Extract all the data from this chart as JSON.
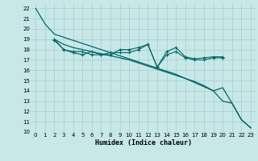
{
  "xlabel": "Humidex (Indice chaleur)",
  "background_color": "#c8e8e8",
  "grid_color": "#a8cccc",
  "line_color": "#006666",
  "xlim": [
    -0.5,
    23.5
  ],
  "ylim": [
    10,
    22.5
  ],
  "xticks": [
    0,
    1,
    2,
    3,
    4,
    5,
    6,
    7,
    8,
    9,
    10,
    11,
    12,
    13,
    14,
    15,
    16,
    17,
    18,
    19,
    20,
    21,
    22,
    23
  ],
  "yticks": [
    10,
    11,
    12,
    13,
    14,
    15,
    16,
    17,
    18,
    19,
    20,
    21,
    22
  ],
  "line1_x": [
    0,
    1,
    2,
    3,
    4,
    5,
    6,
    7,
    8,
    9,
    10,
    11,
    12,
    13,
    14,
    15,
    16,
    17,
    18,
    19,
    20,
    21,
    22,
    23
  ],
  "line1_y": [
    22.0,
    20.5,
    19.5,
    19.2,
    18.9,
    18.6,
    18.3,
    18.0,
    17.7,
    17.4,
    17.1,
    16.8,
    16.5,
    16.2,
    15.9,
    15.6,
    15.2,
    14.8,
    14.4,
    14.0,
    13.0,
    12.8,
    11.2,
    10.4
  ],
  "line2_x": [
    2,
    3,
    4,
    5,
    6,
    7,
    8,
    9,
    10,
    11,
    12,
    13,
    14,
    15,
    16,
    17,
    18,
    19,
    20
  ],
  "line2_y": [
    18.9,
    18.0,
    17.8,
    17.8,
    17.5,
    17.5,
    17.7,
    17.7,
    17.7,
    18.0,
    18.5,
    16.3,
    17.5,
    17.8,
    17.2,
    17.0,
    17.0,
    17.2,
    17.2
  ],
  "line3_x": [
    2,
    3,
    4,
    5,
    6,
    7,
    8,
    9,
    10,
    11,
    12,
    13,
    14,
    15,
    16,
    17,
    18,
    19,
    20
  ],
  "line3_y": [
    19.0,
    18.0,
    17.7,
    17.5,
    17.8,
    17.5,
    17.5,
    18.0,
    18.0,
    18.2,
    18.5,
    16.3,
    17.8,
    18.2,
    17.3,
    17.1,
    17.2,
    17.3,
    17.3
  ],
  "line4_x": [
    2,
    3,
    4,
    5,
    6,
    7,
    8,
    9,
    10,
    11,
    12,
    13,
    14,
    15,
    16,
    17,
    18,
    19,
    20,
    21,
    22,
    23
  ],
  "line4_y": [
    19.0,
    18.5,
    18.2,
    18.0,
    17.8,
    17.6,
    17.4,
    17.2,
    17.0,
    16.7,
    16.4,
    16.1,
    15.8,
    15.5,
    15.2,
    14.9,
    14.5,
    14.0,
    14.3,
    12.8,
    11.2,
    10.4
  ]
}
